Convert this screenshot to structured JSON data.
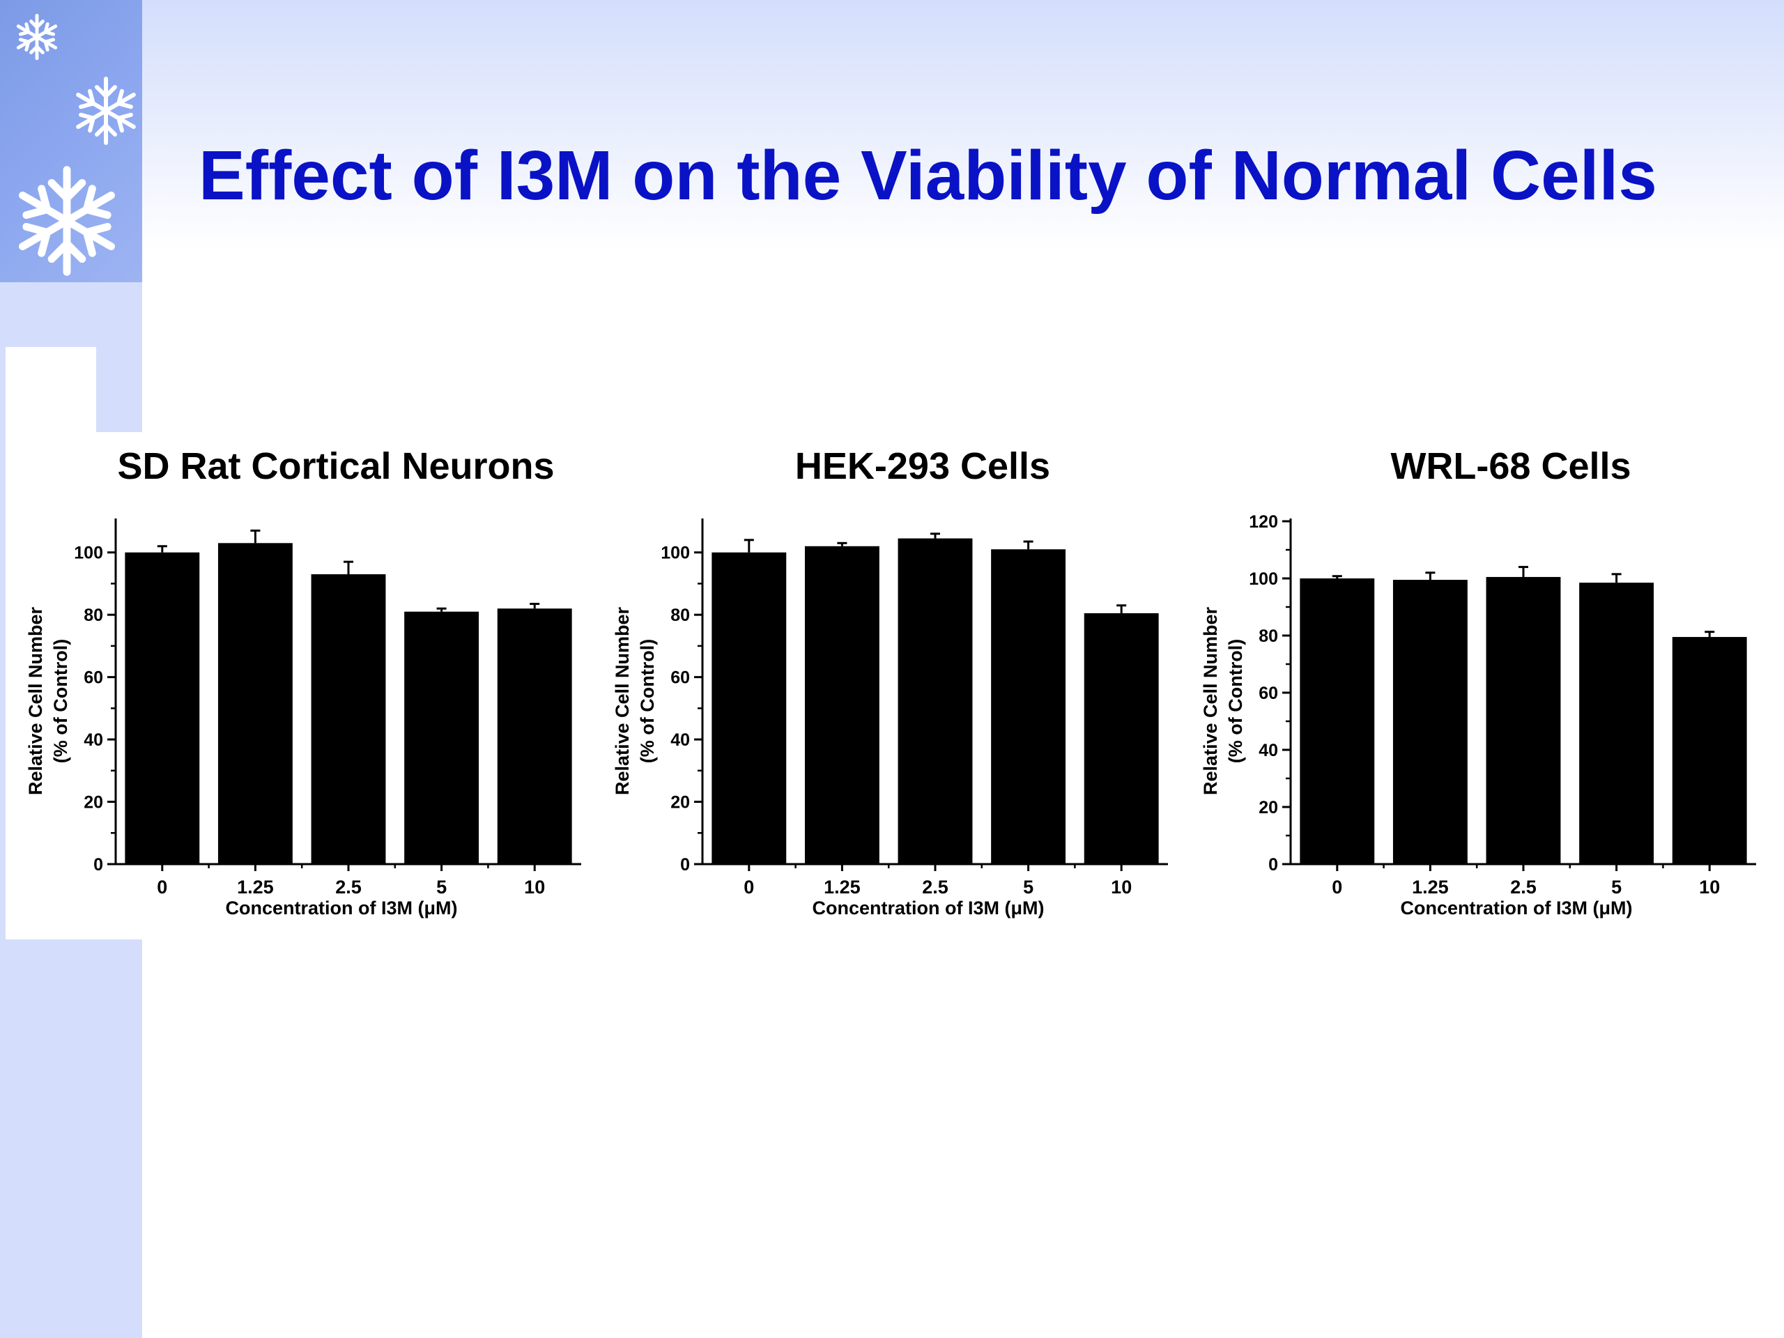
{
  "slide": {
    "title": "Effect of I3M on the Viability of Normal Cells",
    "accent_color": "#0a12c6",
    "background_color": "#d4defc",
    "decorations": [
      "snowflake-icon",
      "snowflake-icon",
      "snowflake-icon"
    ]
  },
  "chart_data": [
    {
      "type": "bar",
      "title": "SD Rat Cortical Neurons",
      "xlabel": "Concentration of I3M (μM)",
      "ylabel_line1": "Relative Cell Number",
      "ylabel_line2": "(% of Control)",
      "categories": [
        "0",
        "1.25",
        "2.5",
        "5",
        "10"
      ],
      "values": [
        100,
        103,
        93,
        81,
        82
      ],
      "errors": [
        2,
        4,
        4,
        1,
        1.5
      ],
      "ylim": [
        0,
        110
      ],
      "yticks": [
        "0",
        "20",
        "40",
        "60",
        "80",
        "100"
      ],
      "bar_color": "#000000"
    },
    {
      "type": "bar",
      "title": "HEK-293 Cells",
      "xlabel": "Concentration of I3M (μM)",
      "ylabel_line1": "Relative Cell Number",
      "ylabel_line2": "(% of Control)",
      "categories": [
        "0",
        "1.25",
        "2.5",
        "5",
        "10"
      ],
      "values": [
        100,
        102,
        104.5,
        101,
        80.5
      ],
      "errors": [
        4,
        1,
        1.5,
        2.5,
        2.5
      ],
      "ylim": [
        0,
        110
      ],
      "yticks": [
        "0",
        "20",
        "40",
        "60",
        "80",
        "100"
      ],
      "bar_color": "#000000"
    },
    {
      "type": "bar",
      "title": "WRL-68 Cells",
      "xlabel": "Concentration of I3M (μM)",
      "ylabel_line1": "Relative Cell Number",
      "ylabel_line2": "(% of Control)",
      "categories": [
        "0",
        "1.25",
        "2.5",
        "5",
        "10"
      ],
      "values": [
        100,
        99.5,
        100.5,
        98.5,
        79.5
      ],
      "errors": [
        0.8,
        2.5,
        3.5,
        3,
        1.8
      ],
      "ylim": [
        0,
        120
      ],
      "yticks": [
        "0",
        "20",
        "40",
        "60",
        "80",
        "100",
        "120"
      ],
      "bar_color": "#000000"
    }
  ]
}
